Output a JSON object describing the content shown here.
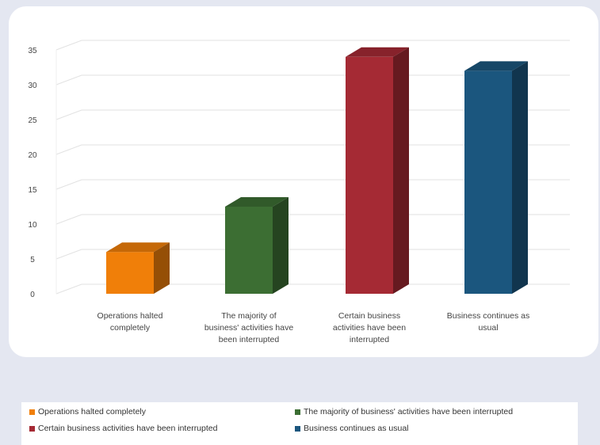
{
  "chart_data": {
    "type": "bar",
    "title": "",
    "xlabel": "",
    "ylabel": "",
    "ylim": [
      0,
      35
    ],
    "yticks": [
      0,
      5,
      10,
      15,
      20,
      25,
      30,
      35
    ],
    "grid": true,
    "legend_position": "bottom",
    "categories": [
      "Operations halted completely",
      "The majority of business' activities have been interrupted",
      "Certain business activities have been interrupted",
      "Business continues as usual"
    ],
    "category_labels": [
      [
        "Operations halted",
        "completely"
      ],
      [
        "The majority of",
        "business' activities have",
        "been interrupted"
      ],
      [
        "Certain business",
        "activities have been",
        "interrupted"
      ],
      [
        "Business continues as",
        "usual"
      ]
    ],
    "values": [
      6,
      12.5,
      34,
      32
    ],
    "colors": [
      "#f07f09",
      "#3c6e33",
      "#a52a34",
      "#1b567e"
    ],
    "legend": [
      "Operations halted completely",
      "The majority of business' activities have been interrupted",
      "Certain business activities have been interrupted",
      "Business continues as usual"
    ]
  }
}
